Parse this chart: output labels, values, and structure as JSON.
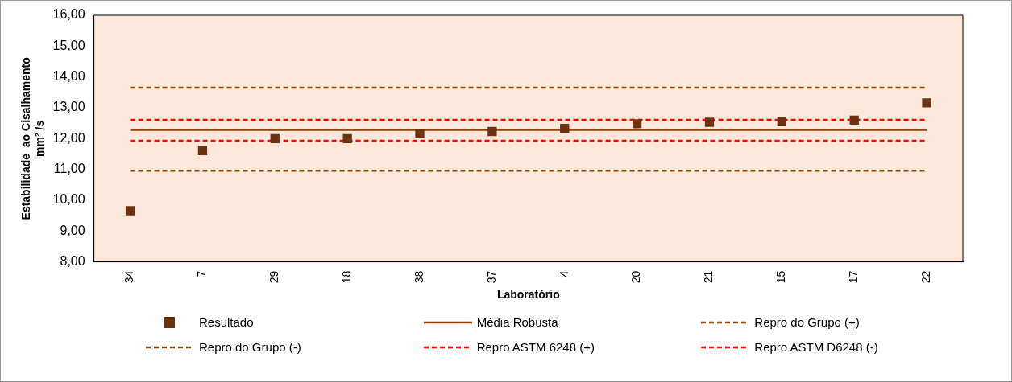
{
  "chart_data": {
    "type": "scatter",
    "xlabel": "Laboratório",
    "ylabel": "Estabilidade  ao Cisalhamento\nmm² /s",
    "categories": [
      "34",
      "7",
      "29",
      "18",
      "38",
      "37",
      "4",
      "20",
      "21",
      "15",
      "17",
      "22"
    ],
    "series": [
      {
        "name": "Resultado",
        "type": "scatter",
        "marker": "square",
        "color": "#6b3312",
        "values": [
          9.66,
          11.61,
          12.0,
          12.0,
          12.16,
          12.23,
          12.33,
          12.48,
          12.53,
          12.55,
          12.6,
          13.16
        ]
      },
      {
        "name": "Média Robusta",
        "type": "line",
        "color": "#8b4513",
        "line_style": "solid",
        "values": [
          12.28,
          12.28,
          12.28,
          12.28,
          12.28,
          12.28,
          12.28,
          12.28,
          12.28,
          12.28,
          12.28,
          12.28
        ]
      },
      {
        "name": "Repro do Grupo  (+)",
        "type": "line",
        "color": "#8b4513",
        "line_style": "dashed",
        "values": [
          13.65,
          13.65,
          13.65,
          13.65,
          13.65,
          13.65,
          13.65,
          13.65,
          13.65,
          13.65,
          13.65,
          13.65
        ]
      },
      {
        "name": "Repro do Grupo  (-)",
        "type": "line",
        "color": "#8b4513",
        "line_style": "dashed",
        "values": [
          10.96,
          10.96,
          10.96,
          10.96,
          10.96,
          10.96,
          10.96,
          10.96,
          10.96,
          10.96,
          10.96,
          10.96
        ]
      },
      {
        "name": "Repro ASTM 6248 (+)",
        "type": "line",
        "color": "#ff0000",
        "line_style": "dashed",
        "values": [
          12.61,
          12.61,
          12.61,
          12.61,
          12.61,
          12.61,
          12.61,
          12.61,
          12.61,
          12.61,
          12.61,
          12.61
        ]
      },
      {
        "name": "Repro ASTM D6248  (-)",
        "type": "line",
        "color": "#ff0000",
        "line_style": "dashed",
        "values": [
          11.93,
          11.93,
          11.93,
          11.93,
          11.93,
          11.93,
          11.93,
          11.93,
          11.93,
          11.93,
          11.93,
          11.93
        ]
      }
    ],
    "ylim": [
      8,
      16
    ],
    "yticks": [
      {
        "value": 8,
        "label": "8,00"
      },
      {
        "value": 9,
        "label": "9,00"
      },
      {
        "value": 10,
        "label": "10,00"
      },
      {
        "value": 11,
        "label": "11,00"
      },
      {
        "value": 12,
        "label": "12,00"
      },
      {
        "value": 13,
        "label": "13,00"
      },
      {
        "value": 14,
        "label": "14,00"
      },
      {
        "value": 15,
        "label": "15,00"
      },
      {
        "value": 16,
        "label": "16,00"
      }
    ],
    "grid": false,
    "legend": "bottom",
    "marker": "none"
  }
}
